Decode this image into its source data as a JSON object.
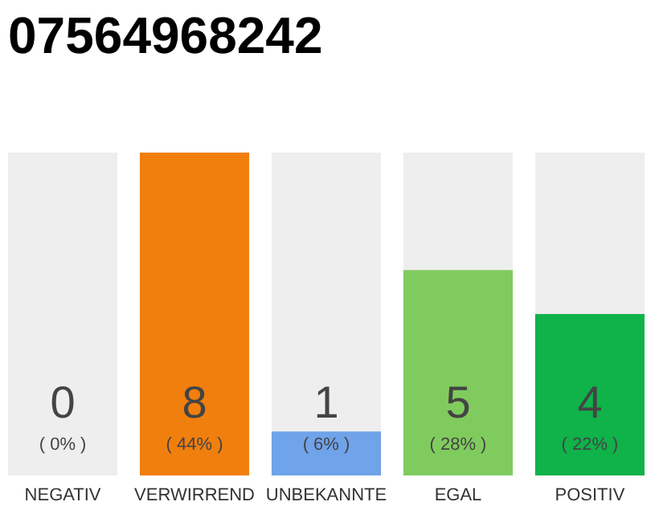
{
  "chart_data": {
    "type": "bar",
    "title": "07564968242",
    "categories": [
      "NEGATIV",
      "VERWIRREND",
      "UNBEKANNTE",
      "EGAL",
      "POSITIV"
    ],
    "values": [
      0,
      44,
      6,
      28,
      22
    ],
    "colors": [
      "#555555",
      "#f17f0d",
      "#6fa3ea",
      "#80cb5e",
      "#10b24a"
    ],
    "value_labels": [
      "( 0% )",
      "( 44% )",
      "( 6% )",
      "( 28% )",
      "( 22% )"
    ],
    "annotations": [
      "0",
      "8",
      "1",
      "5",
      "4"
    ],
    "tick_labels": "x"
  }
}
